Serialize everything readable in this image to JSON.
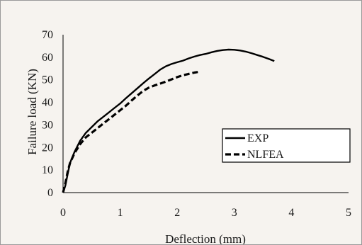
{
  "chart_data": {
    "type": "line",
    "title": "",
    "xlabel": "Deflection (mm)",
    "ylabel": "Failure load (KN)",
    "xlim": [
      0,
      5
    ],
    "ylim": [
      0,
      70
    ],
    "xticks": [
      0,
      1,
      2,
      3,
      4,
      5
    ],
    "yticks": [
      0,
      10,
      20,
      30,
      40,
      50,
      60,
      70
    ],
    "grid": false,
    "legend_position": "center-right",
    "series": [
      {
        "name": "EXP",
        "style": "solid",
        "color": "#000000",
        "points": [
          [
            0,
            0
          ],
          [
            0.04,
            3
          ],
          [
            0.08,
            8
          ],
          [
            0.12,
            13
          ],
          [
            0.2,
            18
          ],
          [
            0.3,
            23
          ],
          [
            0.4,
            26.5
          ],
          [
            0.5,
            29
          ],
          [
            0.6,
            31.5
          ],
          [
            0.7,
            33.5
          ],
          [
            0.8,
            35.5
          ],
          [
            0.9,
            37.5
          ],
          [
            1.0,
            39.5
          ],
          [
            1.1,
            41.8
          ],
          [
            1.2,
            44
          ],
          [
            1.3,
            46.2
          ],
          [
            1.4,
            48.4
          ],
          [
            1.5,
            50.5
          ],
          [
            1.6,
            52.5
          ],
          [
            1.7,
            54.5
          ],
          [
            1.8,
            56
          ],
          [
            1.9,
            57
          ],
          [
            2.0,
            57.8
          ],
          [
            2.1,
            58.5
          ],
          [
            2.2,
            59.5
          ],
          [
            2.3,
            60.3
          ],
          [
            2.4,
            61
          ],
          [
            2.5,
            61.5
          ],
          [
            2.6,
            62.2
          ],
          [
            2.7,
            62.8
          ],
          [
            2.8,
            63.2
          ],
          [
            2.9,
            63.4
          ],
          [
            3.0,
            63.3
          ],
          [
            3.1,
            63
          ],
          [
            3.2,
            62.5
          ],
          [
            3.3,
            61.8
          ],
          [
            3.4,
            61
          ],
          [
            3.5,
            60.2
          ],
          [
            3.6,
            59.3
          ],
          [
            3.7,
            58.3
          ]
        ]
      },
      {
        "name": "NLFEA",
        "style": "dashed",
        "color": "#000000",
        "points": [
          [
            0,
            0
          ],
          [
            0.04,
            4
          ],
          [
            0.08,
            9
          ],
          [
            0.12,
            13
          ],
          [
            0.2,
            17.5
          ],
          [
            0.3,
            21.5
          ],
          [
            0.4,
            24.5
          ],
          [
            0.5,
            26.5
          ],
          [
            0.6,
            28.5
          ],
          [
            0.7,
            30.5
          ],
          [
            0.8,
            32.5
          ],
          [
            0.9,
            34.5
          ],
          [
            1.0,
            36.5
          ],
          [
            1.1,
            38.5
          ],
          [
            1.2,
            40.8
          ],
          [
            1.3,
            43
          ],
          [
            1.4,
            45
          ],
          [
            1.5,
            46.5
          ],
          [
            1.6,
            47.5
          ],
          [
            1.7,
            48.3
          ],
          [
            1.8,
            49.2
          ],
          [
            1.9,
            50.2
          ],
          [
            2.0,
            51.2
          ],
          [
            2.1,
            52
          ],
          [
            2.2,
            52.6
          ],
          [
            2.3,
            53.2
          ],
          [
            2.4,
            53.6
          ]
        ]
      }
    ]
  }
}
